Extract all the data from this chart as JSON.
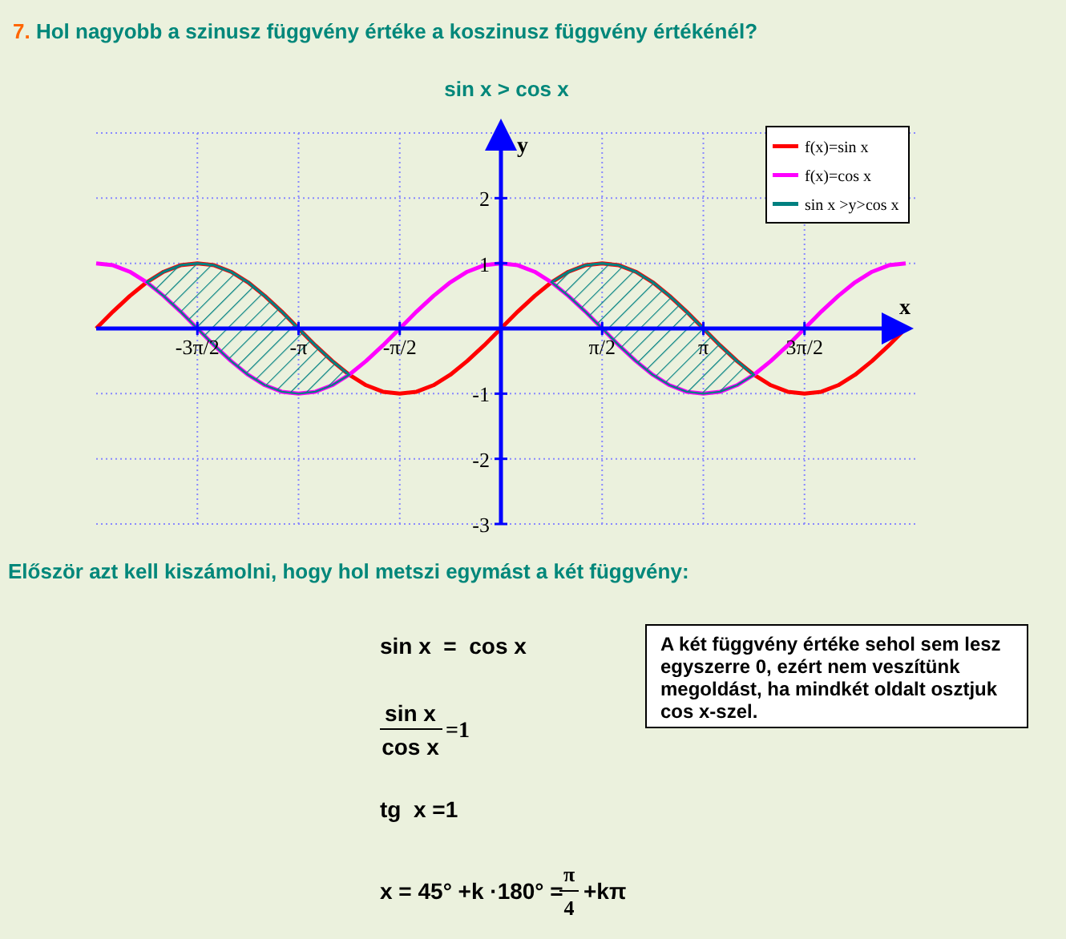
{
  "chart_data": {
    "type": "line",
    "title": "7. Hol nagyobb a szinusz függvény értéke a koszinusz függvény értékénél?",
    "subtitle": "sin x > cos x",
    "xlabel": "x",
    "ylabel": "y",
    "xlim": [
      -6.283,
      6.283
    ],
    "ylim": [
      -3,
      3
    ],
    "xticks": [
      {
        "value": -4.712,
        "label": "-3π/2"
      },
      {
        "value": -3.142,
        "label": "-π"
      },
      {
        "value": -1.571,
        "label": "-π/2"
      },
      {
        "value": 1.571,
        "label": "π/2"
      },
      {
        "value": 3.142,
        "label": "π"
      },
      {
        "value": 4.712,
        "label": "3π/2"
      }
    ],
    "yticks": [
      -3,
      -2,
      -1,
      1,
      2,
      {
        "value": 3,
        "label": null
      }
    ],
    "grid": true,
    "legend": "top right",
    "series": [
      {
        "name": "f(x)=sin x",
        "color": "#ff0000",
        "x": [
          -6.283,
          -6.021,
          -5.76,
          -5.498,
          -5.236,
          -4.974,
          -4.712,
          -4.451,
          -4.189,
          -3.927,
          -3.665,
          -3.403,
          -3.142,
          -2.88,
          -2.618,
          -2.356,
          -2.094,
          -1.833,
          -1.571,
          -1.309,
          -1.047,
          -0.785,
          -0.524,
          -0.262,
          0,
          0.262,
          0.524,
          0.785,
          1.047,
          1.309,
          1.571,
          1.833,
          2.094,
          2.356,
          2.618,
          2.88,
          3.142,
          3.403,
          3.665,
          3.927,
          4.189,
          4.451,
          4.712,
          4.974,
          5.236,
          5.498,
          5.76,
          6.021,
          6.283
        ],
        "values": [
          0,
          0.26,
          0.5,
          0.71,
          0.87,
          0.97,
          1,
          0.97,
          0.87,
          0.71,
          0.5,
          0.26,
          0,
          -0.26,
          -0.5,
          -0.71,
          -0.87,
          -0.97,
          -1,
          -0.97,
          -0.87,
          -0.71,
          -0.5,
          -0.26,
          0,
          0.26,
          0.5,
          0.71,
          0.87,
          0.97,
          1,
          0.97,
          0.87,
          0.71,
          0.5,
          0.26,
          0,
          -0.26,
          -0.5,
          -0.71,
          -0.87,
          -0.97,
          -1,
          -0.97,
          -0.87,
          -0.71,
          -0.5,
          -0.26,
          0
        ]
      },
      {
        "name": "f(x)=cos x",
        "color": "#ff00ff",
        "x": [
          -6.283,
          -6.021,
          -5.76,
          -5.498,
          -5.236,
          -4.974,
          -4.712,
          -4.451,
          -4.189,
          -3.927,
          -3.665,
          -3.403,
          -3.142,
          -2.88,
          -2.618,
          -2.356,
          -2.094,
          -1.833,
          -1.571,
          -1.309,
          -1.047,
          -0.785,
          -0.524,
          -0.262,
          0,
          0.262,
          0.524,
          0.785,
          1.047,
          1.309,
          1.571,
          1.833,
          2.094,
          2.356,
          2.618,
          2.88,
          3.142,
          3.403,
          3.665,
          3.927,
          4.189,
          4.451,
          4.712,
          4.974,
          5.236,
          5.498,
          5.76,
          6.021,
          6.283
        ],
        "values": [
          1,
          0.97,
          0.87,
          0.71,
          0.5,
          0.26,
          0,
          -0.26,
          -0.5,
          -0.71,
          -0.87,
          -0.97,
          -1,
          -0.97,
          -0.87,
          -0.71,
          -0.5,
          -0.26,
          0,
          0.26,
          0.5,
          0.71,
          0.87,
          0.97,
          1,
          0.97,
          0.87,
          0.71,
          0.5,
          0.26,
          0,
          -0.26,
          -0.5,
          -0.71,
          -0.87,
          -0.97,
          -1,
          -0.97,
          -0.87,
          -0.71,
          -0.5,
          -0.26,
          0,
          0.26,
          0.5,
          0.71,
          0.87,
          0.97,
          1
        ]
      },
      {
        "name": "sin x >y>cos x",
        "type": "line",
        "color": "#008080",
        "x": [
          -5.498,
          -5.236,
          -4.974,
          -4.712,
          -4.451,
          -4.189,
          -3.927,
          -3.665,
          -3.403,
          -3.142,
          -2.88,
          -2.618,
          -2.356,
          0,
          0.785,
          1.047,
          1.309,
          1.571,
          1.833,
          2.094,
          2.356,
          2.618,
          2.88,
          3.142,
          3.403,
          3.665,
          3.927
        ],
        "values": [
          0.71,
          0.87,
          0.97,
          1,
          0.97,
          0.87,
          0.71,
          0.5,
          0.26,
          0,
          -0.26,
          -0.5,
          -0.71,
          null,
          0.71,
          0.87,
          0.97,
          1,
          0.97,
          0.87,
          0.71,
          0.5,
          0.26,
          0,
          -0.26,
          -0.5,
          -0.71
        ],
        "lower": [
          0.71,
          0.5,
          0.26,
          0,
          -0.26,
          -0.5,
          -0.71,
          -0.87,
          -0.97,
          -1,
          -0.97,
          -0.87,
          -0.71,
          null,
          0.71,
          0.5,
          0.26,
          0,
          -0.26,
          -0.5,
          -0.71,
          -0.87,
          -0.97,
          -1,
          -0.97,
          -0.87,
          -0.71
        ],
        "upper": [
          0.71,
          0.87,
          0.97,
          1,
          0.97,
          0.87,
          0.71,
          0.5,
          0.26,
          0,
          -0.26,
          -0.5,
          -0.71,
          null,
          0.71,
          0.87,
          0.97,
          1,
          0.97,
          0.87,
          0.71,
          0.5,
          0.26,
          0,
          -0.26,
          -0.5,
          -0.71
        ]
      }
    ],
    "annotations": [
      "Először azt kell kiszámolni, hogy hol metszi egymást a két függvény:",
      "sin x  =  cos x",
      "sin x",
      "cos x",
      "=1",
      "tg  x =1",
      "x = 45° +k ·180° =",
      "π",
      "4",
      "+kπ",
      "A két függvény értéke sehol sem lesz egyszerre 0, ezért nem veszítünk megoldást, ha mindkét oldalt osztjuk cos x-szel."
    ]
  }
}
